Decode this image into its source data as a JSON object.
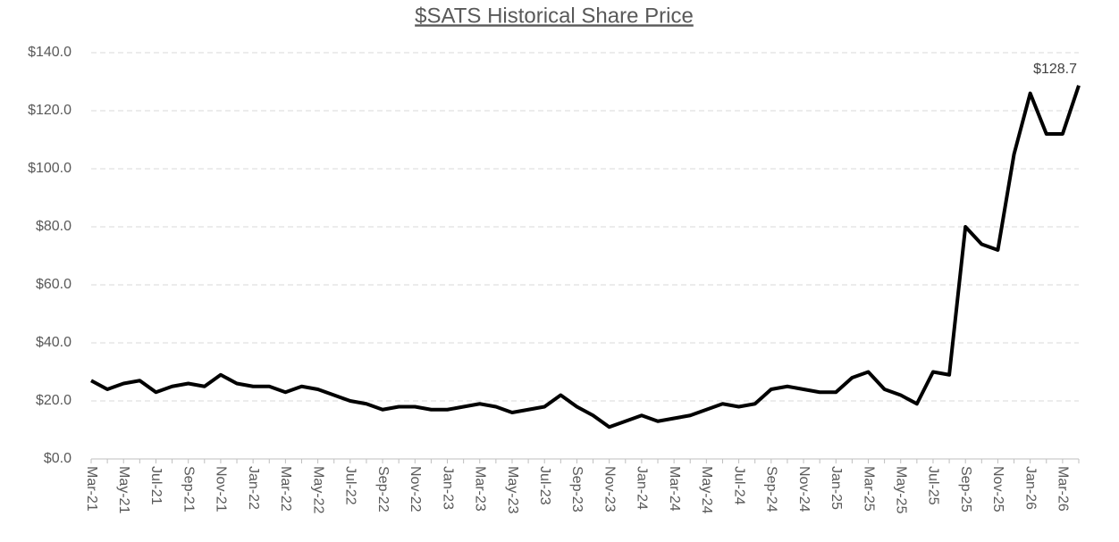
{
  "chart_data": {
    "type": "line",
    "title": "$SATS Historical Share Price",
    "categories": [
      "Mar-21",
      null,
      "May-21",
      null,
      "Jul-21",
      null,
      "Sep-21",
      null,
      "Nov-21",
      null,
      "Jan-22",
      null,
      "Mar-22",
      null,
      "May-22",
      null,
      "Jul-22",
      null,
      "Sep-22",
      null,
      "Nov-22",
      null,
      "Jan-23",
      null,
      "Mar-23",
      null,
      "May-23",
      null,
      "Jul-23",
      null,
      "Sep-23",
      null,
      "Nov-23",
      null,
      "Jan-24",
      null,
      "Mar-24",
      null,
      "May-24",
      null,
      "Jul-24",
      null,
      "Sep-24",
      null,
      "Nov-24",
      null,
      "Jan-25",
      null,
      "Mar-25",
      null,
      "May-25",
      null,
      "Jul-25",
      null,
      "Sep-25",
      null,
      "Nov-25",
      null,
      "Jan-26",
      null,
      "Mar-26",
      null
    ],
    "series": [
      {
        "name": "$SATS",
        "color": "#000000",
        "values": [
          27,
          24,
          26,
          27,
          23,
          25,
          26,
          25,
          29,
          26,
          25,
          25,
          23,
          25,
          24,
          22,
          20,
          19,
          17,
          18,
          18,
          17,
          17,
          18,
          19,
          18,
          16,
          17,
          18,
          22,
          18,
          15,
          11,
          13,
          15,
          13,
          14,
          15,
          17,
          19,
          18,
          19,
          24,
          25,
          24,
          23,
          23,
          28,
          30,
          24,
          22,
          19,
          30,
          29,
          80,
          74,
          72,
          105,
          126,
          112,
          112,
          128.7
        ],
        "value_labels": [
          null,
          null,
          null,
          null,
          null,
          null,
          null,
          null,
          null,
          null,
          null,
          null,
          null,
          null,
          null,
          null,
          null,
          null,
          null,
          null,
          null,
          null,
          null,
          null,
          null,
          null,
          null,
          null,
          null,
          null,
          null,
          null,
          null,
          null,
          null,
          null,
          null,
          null,
          null,
          null,
          null,
          null,
          null,
          null,
          null,
          null,
          null,
          null,
          null,
          null,
          null,
          null,
          null,
          null,
          null,
          null,
          null,
          null,
          null,
          null,
          null,
          "$128.7"
        ]
      }
    ],
    "ylim": [
      0,
      140
    ],
    "yticks": [
      {
        "value": 0,
        "label": "$0.0"
      },
      {
        "value": 20,
        "label": "$20.0"
      },
      {
        "value": 40,
        "label": "$40.0"
      },
      {
        "value": 60,
        "label": "$60.0"
      },
      {
        "value": 80,
        "label": "$80.0"
      },
      {
        "value": 100,
        "label": "$100.0"
      },
      {
        "value": 120,
        "label": "$120.0"
      },
      {
        "value": 140,
        "label": "$140.0"
      }
    ],
    "grid": true
  }
}
